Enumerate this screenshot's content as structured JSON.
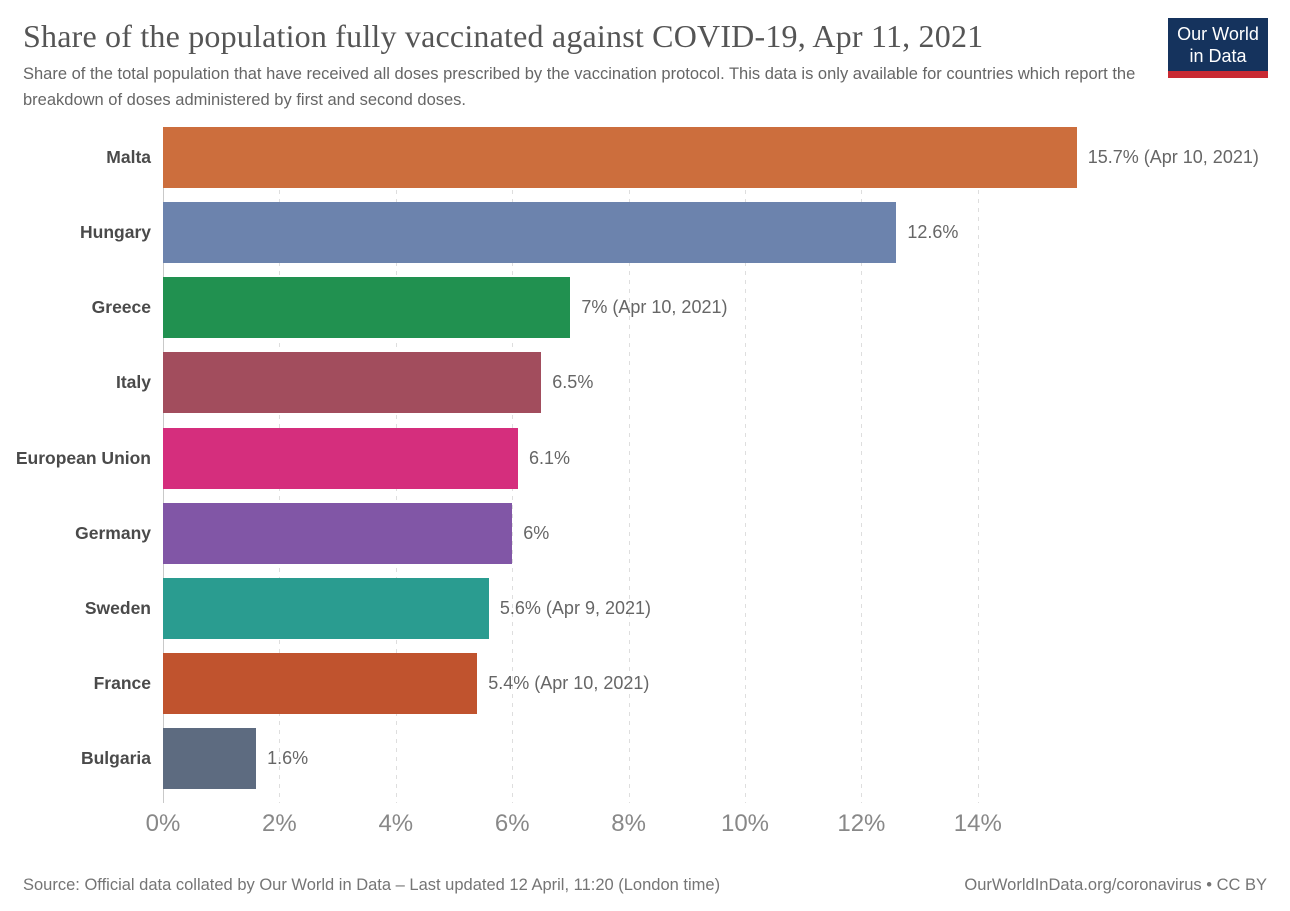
{
  "chart_data": {
    "type": "bar",
    "orientation": "horizontal",
    "title": "Share of the population fully vaccinated against COVID-19, Apr 11, 2021",
    "subtitle": "Share of the total population that have received all doses prescribed by the vaccination protocol. This data is only available for countries which report the breakdown of doses administered by first and second doses.",
    "categories": [
      "Malta",
      "Hungary",
      "Greece",
      "Italy",
      "European Union",
      "Germany",
      "Sweden",
      "France",
      "Bulgaria"
    ],
    "values": [
      15.7,
      12.6,
      7,
      6.5,
      6.1,
      6,
      5.6,
      5.4,
      1.6
    ],
    "value_labels": [
      "15.7% (Apr 10, 2021)",
      "12.6%",
      "7% (Apr 10, 2021)",
      "6.5%",
      "6.1%",
      "6%",
      "5.6% (Apr 9, 2021)",
      "5.4% (Apr 10, 2021)",
      "1.6%"
    ],
    "bar_colors": [
      "#cc6e3d",
      "#6c83ad",
      "#219150",
      "#a24d5d",
      "#d52e7d",
      "#8156a6",
      "#2a9c90",
      "#c0532e",
      "#5d6b80"
    ],
    "x_ticks": [
      0,
      2,
      4,
      6,
      8,
      10,
      12,
      14
    ],
    "x_tick_labels": [
      "0%",
      "2%",
      "4%",
      "6%",
      "8%",
      "10%",
      "12%",
      "14%"
    ],
    "xlim": [
      0,
      15.9
    ],
    "xlabel": "",
    "ylabel": "",
    "grid": true,
    "grid_style": "dashed-vertical",
    "legend": "none"
  },
  "logo": {
    "line1": "Our World",
    "line2": "in Data",
    "bg_color": "#15335d",
    "stripe_color": "#c92a33"
  },
  "footer": {
    "source": "Source: Official data collated by Our World in Data – Last updated 12 April, 11:20 (London time)",
    "link": "OurWorldInData.org/coronavirus • CC BY"
  }
}
